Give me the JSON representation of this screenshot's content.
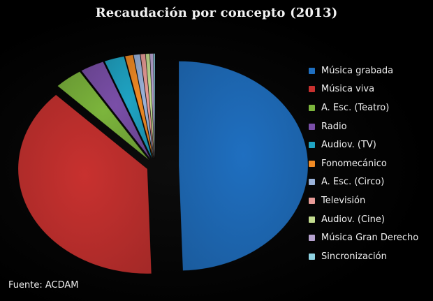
{
  "chart_data": {
    "type": "pie",
    "title": "Recaudación por concepto (2013)",
    "legend_position": "right",
    "exploded": true,
    "slices": [
      {
        "name": "Música grabada",
        "value": 49.5,
        "color": "#1f6fc0"
      },
      {
        "name": "Música viva",
        "value": 38.0,
        "color": "#c8312f"
      },
      {
        "name": "A. Esc. (Teatro)",
        "value": 3.5,
        "color": "#7cb53c"
      },
      {
        "name": "Radio",
        "value": 3.0,
        "color": "#7a4fa8"
      },
      {
        "name": "Audiov. (TV)",
        "value": 2.5,
        "color": "#1fa4c4"
      },
      {
        "name": "Fonomecánico",
        "value": 1.0,
        "color": "#f08a24"
      },
      {
        "name": "A. Esc. (Circo)",
        "value": 0.8,
        "color": "#9bb3da"
      },
      {
        "name": "Televisión",
        "value": 0.6,
        "color": "#e89b97"
      },
      {
        "name": "Audiov. (Cine)",
        "value": 0.5,
        "color": "#c3dc8f"
      },
      {
        "name": "Música Gran Derecho",
        "value": 0.4,
        "color": "#b6a2cf"
      },
      {
        "name": "Sincronización",
        "value": 0.2,
        "color": "#8fd3e2"
      }
    ]
  },
  "source_text": "Fuente: ACDAM"
}
